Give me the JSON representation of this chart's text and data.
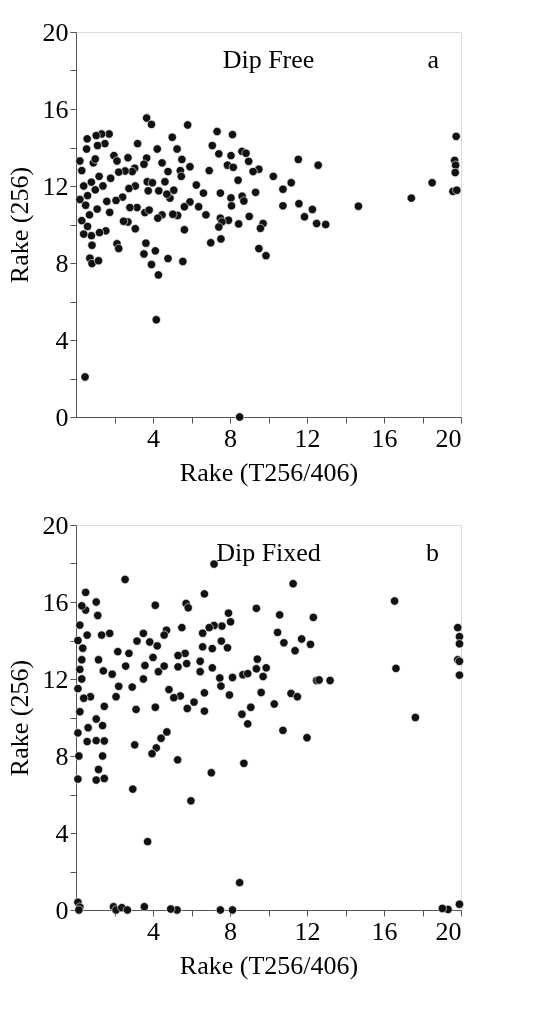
{
  "chart_data": [
    {
      "type": "scatter",
      "annotations": [
        "Dip Free",
        "a"
      ],
      "xlabel": "Rake (T256/406)",
      "ylabel": "Rake (256)",
      "marker": "circle",
      "grid": false,
      "xlim": [
        0,
        20
      ],
      "ylim": [
        0,
        20
      ],
      "xticks": [
        {
          "value": 2,
          "label": null
        },
        4,
        {
          "value": 6,
          "label": null
        },
        8,
        {
          "value": 10,
          "label": null
        },
        12,
        {
          "value": 14,
          "label": null
        },
        16,
        {
          "value": 18,
          "label": null
        },
        20
      ],
      "yticks": [
        0,
        {
          "value": 2,
          "label": null
        },
        4,
        {
          "value": 6,
          "label": null
        },
        8,
        {
          "value": 10,
          "label": null
        },
        12,
        {
          "value": 14,
          "label": null
        },
        16,
        {
          "value": 18,
          "label": null
        },
        20
      ],
      "series": [
        {
          "color": "#111111",
          "x": [
            3.67,
            3.92,
            5.8,
            7.33,
            8.13,
            5.0,
            19.75,
            1.72,
            1.33,
            1.05,
            0.58,
            0.55,
            1.5,
            1.12,
            3.2,
            4.22,
            5.25,
            7.08,
            7.42,
            8.05,
            8.62,
            8.83,
            1.97,
            2.7,
            3.67,
            5.5,
            11.55,
            12.58,
            19.67,
            19.72,
            19.7,
            19.58,
            19.78,
            18.5,
            17.42,
            14.67,
            12.97,
            12.5,
            12.28,
            11.87,
            11.58,
            11.18,
            10.75,
            10.75,
            10.25,
            9.87,
            9.5,
            9.72,
            9.58,
            9.0,
            9.33,
            9.5,
            9.2,
            8.97,
            8.42,
            8.63,
            8.72,
            8.45,
            8.05,
            8.08,
            7.92,
            7.87,
            8.17,
            7.5,
            7.5,
            7.58,
            7.42,
            7.53,
            7.0,
            6.92,
            6.75,
            6.62,
            6.37,
            6.25,
            5.92,
            5.92,
            5.63,
            5.63,
            5.55,
            5.42,
            5.47,
            5.28,
            5.03,
            5.08,
            4.78,
            4.88,
            4.62,
            4.47,
            4.72,
            4.78,
            4.47,
            4.25,
            4.3,
            4.28,
            4.17,
            4.12,
            3.92,
            3.63,
            3.53,
            3.58,
            3.8,
            3.75,
            3.7,
            3.97,
            3.53,
            3.08,
            3.05,
            3.08,
            3.17,
            2.8,
            2.7,
            2.47,
            2.13,
            2.22,
            2.92,
            2.55,
            2.22,
            2.13,
            2.75,
            2.42,
            2.08,
            1.75,
            1.55,
            1.22,
            0.8,
            0.83,
            0.72,
            0.83,
            1.17,
            0.47,
            8.5,
            0.4,
            0.6,
            0.8,
            1.0,
            1.2,
            0.5,
            0.7,
            0.9,
            1.4,
            1.6,
            0.3,
            0.2,
            1.1,
            1.8,
            0.6,
            0.3,
            1.0,
            0.2,
            0.4
          ],
          "values": [
            15.53,
            15.2,
            15.17,
            14.83,
            14.67,
            14.53,
            14.58,
            14.7,
            14.7,
            14.62,
            14.45,
            13.92,
            14.2,
            14.1,
            14.2,
            13.92,
            13.92,
            14.1,
            13.67,
            13.58,
            13.8,
            13.7,
            13.58,
            13.47,
            13.45,
            13.38,
            13.38,
            13.08,
            13.33,
            13.08,
            12.7,
            11.72,
            11.78,
            12.17,
            11.37,
            10.95,
            10.0,
            10.05,
            10.78,
            10.4,
            11.08,
            12.17,
            10.97,
            11.83,
            12.5,
            8.38,
            8.75,
            10.05,
            9.8,
            10.42,
            11.67,
            12.87,
            12.75,
            13.28,
            12.3,
            11.47,
            11.22,
            10.03,
            11.38,
            10.97,
            10.22,
            13.08,
            12.97,
            11.63,
            10.33,
            10.13,
            9.87,
            9.25,
            9.05,
            12.8,
            10.5,
            11.63,
            10.92,
            12.05,
            13.0,
            11.17,
            10.92,
            9.73,
            8.08,
            12.8,
            12.5,
            10.47,
            10.53,
            11.78,
            12.75,
            11.37,
            12.22,
            13.2,
            11.58,
            8.23,
            10.5,
            10.33,
            11.75,
            7.38,
            5.05,
            8.63,
            7.92,
            9.03,
            8.47,
            10.62,
            10.75,
            11.75,
            12.22,
            12.17,
            13.13,
            9.78,
            12.92,
            12.0,
            10.88,
            10.88,
            10.13,
            10.17,
            9.0,
            8.75,
            12.75,
            12.78,
            12.72,
            13.3,
            11.87,
            11.42,
            11.25,
            10.63,
            9.67,
            9.58,
            9.42,
            8.92,
            8.25,
            7.97,
            8.12,
            2.08,
            0.0,
            12.0,
            11.5,
            12.2,
            11.8,
            12.5,
            11.0,
            10.5,
            13.2,
            12.0,
            11.2,
            12.8,
            11.3,
            10.8,
            12.4,
            9.9,
            10.2,
            13.4,
            13.3,
            9.5
          ]
        }
      ]
    },
    {
      "type": "scatter",
      "annotations": [
        "Dip Fixed",
        "b"
      ],
      "xlabel": "Rake (T256/406)",
      "ylabel": "Rake (256)",
      "marker": "circle",
      "grid": false,
      "xlim": [
        0,
        20
      ],
      "ylim": [
        0,
        20
      ],
      "xticks": [
        {
          "value": 2,
          "label": null
        },
        4,
        {
          "value": 6,
          "label": null
        },
        8,
        {
          "value": 10,
          "label": null
        },
        12,
        {
          "value": 14,
          "label": null
        },
        16,
        {
          "value": 18,
          "label": null
        },
        20
      ],
      "yticks": [
        0,
        {
          "value": 2,
          "label": null
        },
        4,
        {
          "value": 6,
          "label": null
        },
        8,
        {
          "value": 10,
          "label": null
        },
        12,
        {
          "value": 14,
          "label": null
        },
        16,
        {
          "value": 18,
          "label": null
        },
        20
      ],
      "series": [
        {
          "color": "#111111",
          "x": [
            7.17,
            2.55,
            11.28,
            16.55,
            6.67,
            1.05,
            4.12,
            5.72,
            5.83,
            1.13,
            0.5,
            0.5,
            9.37,
            10.58,
            12.33,
            7.92,
            8.03,
            7.58,
            7.17,
            6.92,
            6.58,
            5.5,
            4.7,
            4.58,
            3.5,
            3.17,
            3.83,
            4.22,
            1.75,
            1.33,
            0.58,
            10.47,
            10.8,
            11.72,
            12.18,
            11.38,
            7.55,
            7.87,
            7.08,
            6.58,
            5.67,
            5.3,
            5.75,
            5.3,
            4.0,
            4.58,
            4.28,
            6.45,
            6.45,
            7.08,
            7.47,
            7.53,
            8.13,
            8.67,
            8.92,
            9.42,
            9.37,
            9.88,
            9.72,
            9.62,
            9.08,
            10.3,
            11.17,
            11.5,
            12.5,
            12.63,
            13.2,
            16.62,
            17.63,
            19.83,
            19.92,
            19.92,
            19.83,
            19.92,
            19.92,
            19.92,
            19.33,
            19.03,
            10.75,
            12.0,
            7.97,
            8.62,
            8.92,
            8.72,
            8.5,
            8.13,
            7.5,
            7.03,
            6.67,
            6.67,
            6.13,
            5.78,
            5.42,
            5.08,
            4.83,
            4.72,
            4.42,
            4.17,
            3.95,
            4.12,
            5.28,
            5.97,
            3.72,
            3.55,
            5.25,
            4.92,
            3.12,
            3.05,
            2.95,
            2.92,
            3.5,
            3.58,
            2.58,
            2.75,
            2.17,
            2.08,
            2.22,
            1.88,
            1.42,
            1.17,
            1.47,
            1.38,
            1.05,
            1.05,
            1.47,
            1.38,
            1.17,
            1.05,
            1.47,
            0.63,
            0.58,
            0.75,
            1.95,
            2.08,
            2.38,
            2.67,
            0.1,
            0.2,
            0.15,
            0.1,
            0.15,
            0.1,
            0.2,
            0.1,
            0.2,
            0.3,
            0.1,
            0.2,
            0.3,
            0.3,
            0.4,
            0.35
          ],
          "values": [
            17.97,
            17.17,
            16.95,
            16.05,
            16.42,
            16.0,
            15.83,
            15.92,
            15.7,
            15.3,
            16.5,
            15.58,
            15.67,
            15.33,
            15.2,
            15.42,
            14.97,
            14.75,
            14.78,
            14.67,
            14.38,
            14.67,
            14.53,
            14.28,
            14.37,
            13.97,
            13.92,
            13.72,
            14.37,
            14.28,
            14.28,
            14.42,
            13.88,
            14.08,
            13.8,
            13.47,
            13.97,
            13.62,
            13.58,
            13.67,
            13.33,
            13.22,
            12.8,
            12.63,
            13.12,
            12.67,
            12.38,
            12.92,
            12.38,
            12.58,
            12.05,
            11.63,
            12.08,
            12.22,
            12.28,
            13.03,
            12.53,
            12.58,
            12.13,
            11.3,
            10.53,
            10.7,
            11.25,
            11.08,
            11.92,
            11.95,
            11.92,
            12.55,
            10.0,
            14.67,
            14.2,
            13.83,
            13.0,
            12.92,
            12.2,
            0.3,
            0.03,
            0.08,
            9.33,
            8.95,
            11.17,
            10.17,
            9.67,
            7.62,
            1.42,
            0.0,
            0.0,
            7.13,
            11.28,
            10.33,
            10.8,
            10.47,
            11.12,
            11.03,
            11.45,
            9.25,
            8.92,
            8.42,
            8.12,
            10.53,
            7.8,
            5.67,
            3.55,
            0.17,
            0.0,
            0.05,
            10.42,
            8.58,
            6.28,
            11.58,
            12.0,
            12.7,
            12.67,
            13.33,
            13.42,
            11.08,
            11.62,
            12.25,
            12.42,
            13.0,
            10.58,
            9.58,
            9.92,
            8.8,
            8.78,
            8.0,
            7.3,
            6.75,
            6.83,
            9.47,
            8.75,
            11.08,
            0.17,
            0.0,
            0.12,
            0.0,
            0.4,
            0.15,
            0.0,
            6.8,
            8.0,
            9.2,
            10.3,
            11.5,
            12.5,
            13.0,
            14.0,
            14.8,
            15.8,
            12.0,
            11.0,
            13.6
          ]
        }
      ]
    }
  ]
}
